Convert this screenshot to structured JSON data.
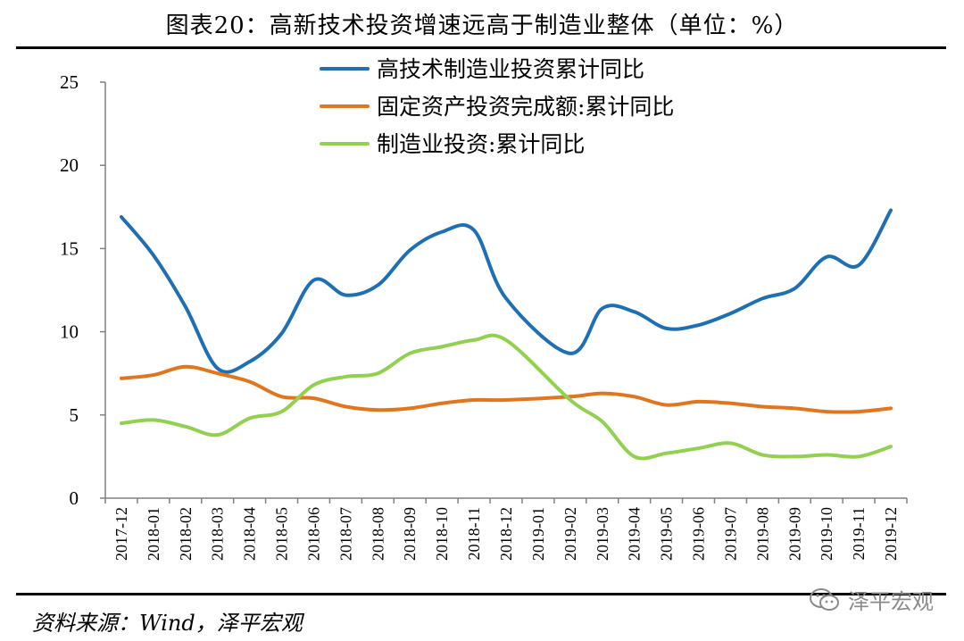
{
  "title": "图表20：高新技术投资增速远高于制造业整体（单位：%）",
  "source": "资料来源：Wind，泽平宏观",
  "watermark": "泽平宏观",
  "chart_data": {
    "type": "line",
    "title": "图表20：高新技术投资增速远高于制造业整体（单位：%）",
    "xlabel": "",
    "ylabel": "",
    "ylim": [
      0,
      25
    ],
    "yticks": [
      0,
      5,
      10,
      15,
      20,
      25
    ],
    "grid": false,
    "legend_position": "top-center",
    "categories": [
      "2017-12",
      "2018-01",
      "2018-02",
      "2018-03",
      "2018-04",
      "2018-05",
      "2018-06",
      "2018-07",
      "2018-08",
      "2018-09",
      "2018-10",
      "2018-11",
      "2018-12",
      "2019-01",
      "2019-02",
      "2019-03",
      "2019-04",
      "2019-05",
      "2019-06",
      "2019-07",
      "2019-08",
      "2019-09",
      "2019-10",
      "2019-11",
      "2019-12"
    ],
    "series": [
      {
        "name": "高技术制造业投资累计同比",
        "color": "#1f6fb4",
        "values": [
          16.9,
          14.6,
          11.5,
          7.8,
          8.2,
          9.9,
          13.1,
          12.2,
          12.8,
          14.9,
          16.0,
          16.1,
          12.0,
          null,
          8.7,
          11.4,
          11.2,
          10.2,
          10.4,
          11.1,
          12.0,
          12.6,
          14.5,
          14.0,
          17.3
        ]
      },
      {
        "name": "固定资产投资完成额:累计同比",
        "color": "#e2761f",
        "values": [
          7.2,
          7.4,
          7.9,
          7.5,
          7.0,
          6.1,
          6.0,
          5.5,
          5.3,
          5.4,
          5.7,
          5.9,
          5.9,
          null,
          6.1,
          6.3,
          6.1,
          5.6,
          5.8,
          5.7,
          5.5,
          5.4,
          5.2,
          5.2,
          5.4
        ]
      },
      {
        "name": "制造业投资:累计同比",
        "color": "#92d050",
        "values": [
          4.5,
          4.7,
          4.3,
          3.8,
          4.8,
          5.2,
          6.8,
          7.3,
          7.5,
          8.7,
          9.1,
          9.5,
          9.5,
          null,
          5.9,
          4.6,
          2.5,
          2.7,
          3.0,
          3.3,
          2.6,
          2.5,
          2.6,
          2.5,
          3.1
        ]
      }
    ]
  }
}
